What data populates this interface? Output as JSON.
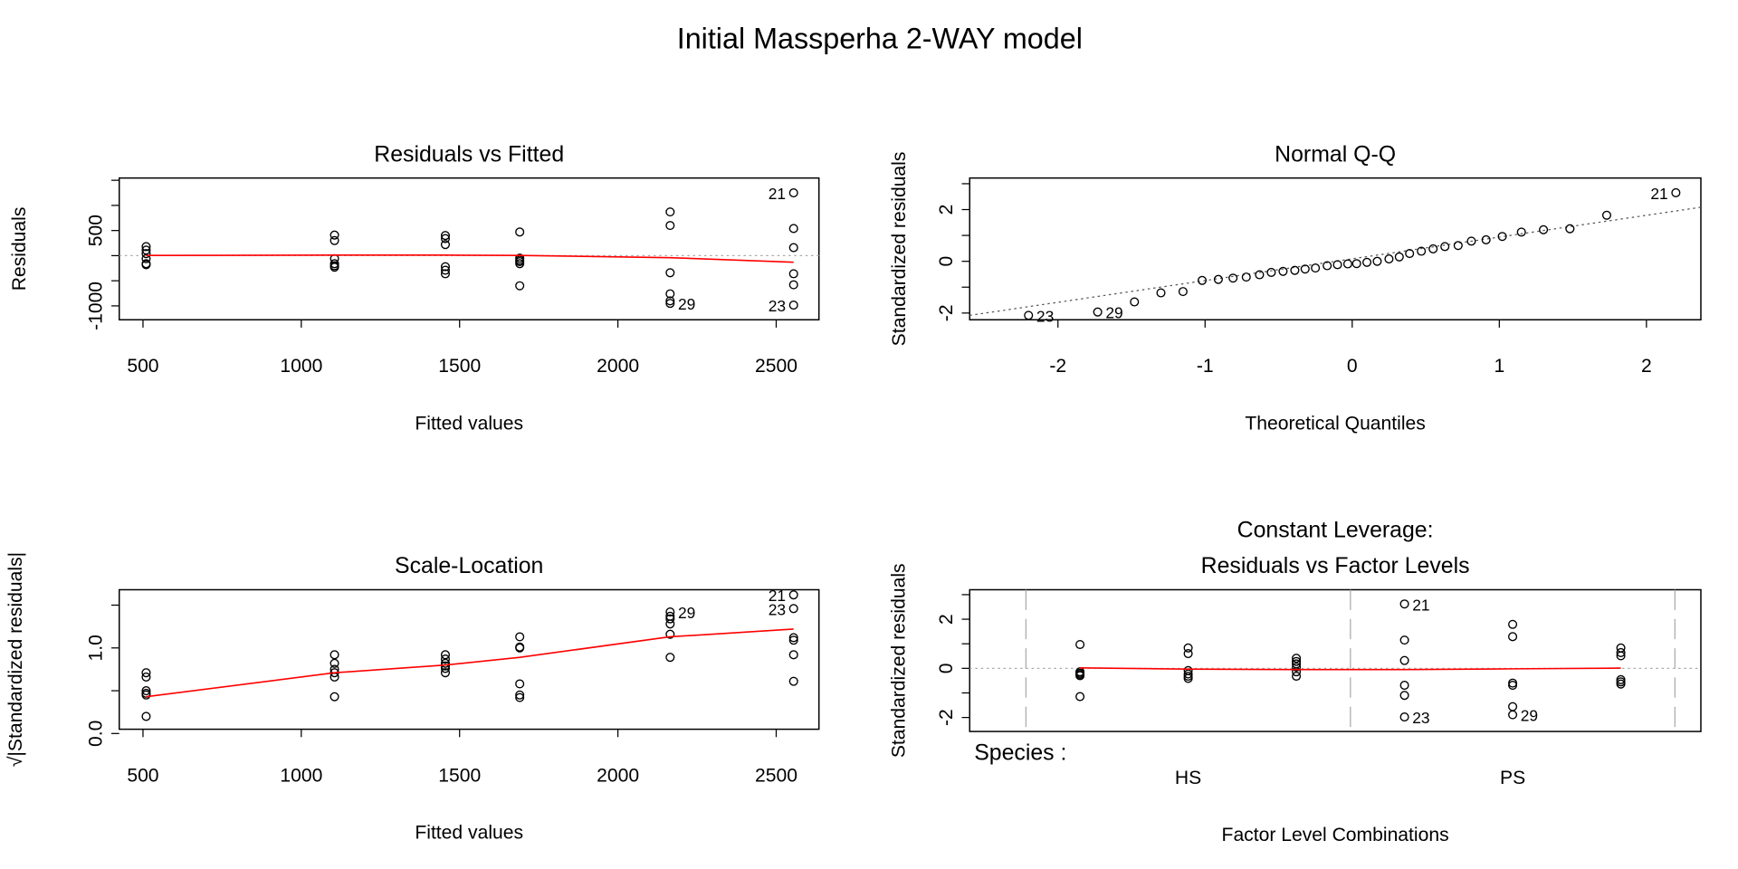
{
  "title": "Initial Massperha 2-WAY model",
  "chart_data": [
    {
      "type": "scatter",
      "title": "Residuals vs Fitted",
      "xlabel": "Fitted values",
      "ylabel": "Residuals",
      "xlim": [
        425,
        2635
      ],
      "ylim": [
        -1276,
        1545
      ],
      "xticks": [
        500,
        1000,
        1500,
        2000,
        2500
      ],
      "yticks": [
        -1000,
        {
          "value": -500,
          "label": null
        },
        {
          "value": 0,
          "label": null
        },
        500,
        {
          "value": 1000,
          "label": null
        },
        {
          "value": 1500,
          "label": null
        }
      ],
      "hline": 0,
      "x": [
        510,
        510,
        510,
        510,
        510,
        510,
        1105,
        1105,
        1105,
        1105,
        1105,
        1105,
        1455,
        1455,
        1455,
        1455,
        1455,
        1455,
        1690,
        1690,
        1690,
        1690,
        1690,
        1690,
        2165,
        2165,
        2165,
        2165,
        2165,
        2165,
        2555,
        2555,
        2555,
        2555,
        2555,
        2555
      ],
      "y": [
        180,
        110,
        40,
        -60,
        -160,
        -180,
        410,
        300,
        -60,
        -160,
        -230,
        -200,
        400,
        340,
        220,
        -220,
        -290,
        -360,
        470,
        -50,
        -120,
        -160,
        -600,
        -90,
        870,
        600,
        -340,
        -760,
        -900,
        -950,
        1250,
        540,
        160,
        -360,
        -580,
        -985
      ],
      "point_labels": [
        null,
        null,
        null,
        null,
        null,
        null,
        null,
        null,
        null,
        null,
        null,
        null,
        null,
        null,
        null,
        null,
        null,
        null,
        null,
        null,
        null,
        null,
        null,
        null,
        null,
        null,
        null,
        null,
        null,
        "29",
        "21",
        null,
        null,
        null,
        null,
        "23"
      ],
      "smooth": {
        "color": "#ff0000",
        "x": [
          510,
          1105,
          1455,
          1690,
          2165,
          2555
        ],
        "y": [
          5,
          10,
          10,
          5,
          -40,
          -130
        ]
      }
    },
    {
      "type": "scatter",
      "title": "Normal Q-Q",
      "xlabel": "Theoretical Quantiles",
      "ylabel": "Standardized residuals",
      "xlim": [
        -2.6,
        2.37
      ],
      "ylim": [
        -2.26,
        3.22
      ],
      "xticks": [
        -2,
        -1,
        0,
        1,
        2
      ],
      "yticks": [
        -2,
        {
          "value": -1,
          "label": null
        },
        0,
        {
          "value": 1,
          "label": null
        },
        2,
        {
          "value": 3,
          "label": null
        }
      ],
      "ref_line": {
        "x": [
          -2.6,
          2.37
        ],
        "y": [
          -2.09,
          2.09
        ]
      },
      "x": [
        -2.2,
        -1.73,
        -1.48,
        -1.3,
        -1.15,
        -1.02,
        -0.91,
        -0.81,
        -0.72,
        -0.63,
        -0.55,
        -0.47,
        -0.39,
        -0.32,
        -0.25,
        -0.17,
        -0.1,
        -0.03,
        0.03,
        0.1,
        0.17,
        0.25,
        0.32,
        0.39,
        0.47,
        0.55,
        0.63,
        0.72,
        0.81,
        0.91,
        1.02,
        1.15,
        1.3,
        1.48,
        1.73,
        2.2
      ],
      "y": [
        -2.09,
        -1.96,
        -1.57,
        -1.22,
        -1.17,
        -0.74,
        -0.7,
        -0.65,
        -0.61,
        -0.52,
        -0.43,
        -0.39,
        -0.35,
        -0.3,
        -0.26,
        -0.17,
        -0.13,
        -0.1,
        -0.09,
        -0.04,
        0,
        0.09,
        0.17,
        0.3,
        0.39,
        0.48,
        0.57,
        0.61,
        0.78,
        0.83,
        0.96,
        1.13,
        1.22,
        1.26,
        1.78,
        2.65
      ],
      "point_labels": [
        "23",
        "29",
        null,
        null,
        null,
        null,
        null,
        null,
        null,
        null,
        null,
        null,
        null,
        null,
        null,
        null,
        null,
        null,
        null,
        null,
        null,
        null,
        null,
        null,
        null,
        null,
        null,
        null,
        null,
        null,
        null,
        null,
        null,
        null,
        null,
        "21"
      ]
    },
    {
      "type": "scatter",
      "title": "Scale-Location",
      "xlabel": "Fitted values",
      "ylabel": "√|Standardized residuals|",
      "xlim": [
        425,
        2635
      ],
      "ylim": [
        0.05,
        1.68
      ],
      "xticks": [
        500,
        1000,
        1500,
        2000,
        2500
      ],
      "yticks": [
        {
          "value": 0,
          "label": "0.0"
        },
        {
          "value": 0.5,
          "label": null
        },
        {
          "value": 1,
          "label": "1.0"
        },
        {
          "value": 1.5,
          "label": null
        }
      ],
      "x": [
        510,
        510,
        510,
        510,
        510,
        510,
        1105,
        1105,
        1105,
        1105,
        1105,
        1105,
        1455,
        1455,
        1455,
        1455,
        1455,
        1455,
        1690,
        1690,
        1690,
        1690,
        1690,
        1690,
        2165,
        2165,
        2165,
        2165,
        2165,
        2165,
        2555,
        2555,
        2555,
        2555,
        2555,
        2555
      ],
      "y": [
        0.71,
        0.66,
        0.5,
        0.47,
        0.45,
        0.2,
        0.92,
        0.82,
        0.71,
        0.66,
        0.43,
        0.75,
        0.92,
        0.87,
        0.82,
        0.76,
        0.71,
        0.79,
        1.13,
        1.01,
        0.58,
        0.45,
        1.0,
        0.42,
        1.42,
        1.34,
        1.28,
        1.16,
        0.89,
        1.37,
        1.62,
        1.46,
        1.12,
        1.09,
        0.92,
        0.61
      ],
      "point_labels": [
        null,
        null,
        null,
        null,
        null,
        null,
        null,
        null,
        null,
        null,
        null,
        null,
        null,
        null,
        null,
        null,
        null,
        null,
        null,
        null,
        null,
        null,
        null,
        null,
        "29",
        null,
        null,
        null,
        null,
        null,
        "21",
        "23",
        null,
        null,
        null,
        null
      ],
      "smooth": {
        "color": "#ff0000",
        "x": [
          510,
          1105,
          1455,
          1690,
          2165,
          2555
        ],
        "y": [
          0.43,
          0.71,
          0.8,
          0.89,
          1.13,
          1.22
        ]
      }
    },
    {
      "type": "scatter",
      "title": [
        "Constant Leverage:",
        "Residuals vs Factor Levels"
      ],
      "xlabel": "Factor Level Combinations",
      "ylabel": "Standardized residuals",
      "xlim": [
        -0.02,
        6.74
      ],
      "ylim": [
        -2.57,
        3.2
      ],
      "yticks": [
        -2,
        {
          "value": -1,
          "label": null
        },
        0,
        {
          "value": 1,
          "label": null
        },
        2,
        {
          "value": 3,
          "label": null
        }
      ],
      "hline": 0,
      "dividers": [
        0.5,
        3.5,
        6.5
      ],
      "factor_levels": {
        "label": "Species :",
        "names": [
          "HS",
          "PS"
        ],
        "positions": [
          2,
          5
        ]
      },
      "x": [
        1,
        1,
        1,
        1,
        1,
        1,
        2,
        2,
        2,
        2,
        2,
        2,
        3,
        3,
        3,
        3,
        3,
        3,
        4,
        4,
        4,
        4,
        4,
        4,
        5,
        5,
        5,
        5,
        5,
        5,
        6,
        6,
        6,
        6,
        6,
        6
      ],
      "y": [
        0.97,
        -0.14,
        -0.2,
        -0.25,
        -1.15,
        -0.3,
        0.83,
        0.6,
        -0.09,
        -0.23,
        -0.32,
        -0.41,
        0.41,
        0.28,
        0.18,
        0.05,
        -0.14,
        -0.32,
        2.62,
        1.15,
        0.32,
        -0.69,
        -1.1,
        -1.98,
        1.79,
        1.29,
        -0.6,
        -0.69,
        -1.56,
        -1.89,
        0.83,
        0.64,
        0.51,
        -0.46,
        -0.55,
        -0.64
      ],
      "point_labels": [
        null,
        null,
        null,
        null,
        null,
        null,
        null,
        null,
        null,
        null,
        null,
        null,
        null,
        null,
        null,
        null,
        null,
        null,
        "21",
        null,
        null,
        null,
        null,
        "23",
        null,
        null,
        null,
        null,
        null,
        "29",
        null,
        null,
        null,
        null,
        null,
        null
      ],
      "smooth": {
        "color": "#ff0000",
        "x": [
          1,
          2,
          3,
          4,
          5,
          6
        ],
        "y": [
          0.02,
          -0.03,
          -0.05,
          -0.05,
          -0.02,
          0.01
        ]
      }
    }
  ]
}
